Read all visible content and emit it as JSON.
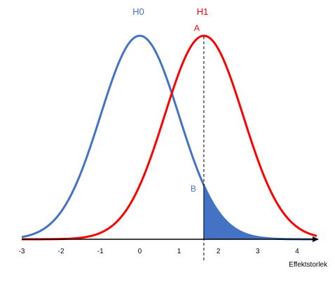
{
  "chart_data": {
    "type": "line",
    "xlabel": "Effektstorlek",
    "ylabel": "",
    "xlim": [
      -3,
      4.5
    ],
    "ylim": [
      0,
      0.4
    ],
    "x_ticks": [
      -3,
      -2,
      -1,
      0,
      1,
      2,
      3,
      4
    ],
    "grid": false,
    "critical_value": 1.63,
    "series": [
      {
        "name": "H0",
        "mean": 0,
        "sd": 1,
        "color": "#4472C4"
      },
      {
        "name": "H1",
        "mean": 1.63,
        "sd": 1,
        "color": "#FF0000"
      }
    ],
    "shaded_region": {
      "series": "H0",
      "from": 1.63,
      "to": 4.5,
      "color": "#4472C4"
    },
    "annotations": [
      {
        "text": "A",
        "x": 1.63,
        "color": "#FF0000"
      },
      {
        "text": "B",
        "x": 1.63,
        "color": "#4472C4"
      }
    ]
  }
}
